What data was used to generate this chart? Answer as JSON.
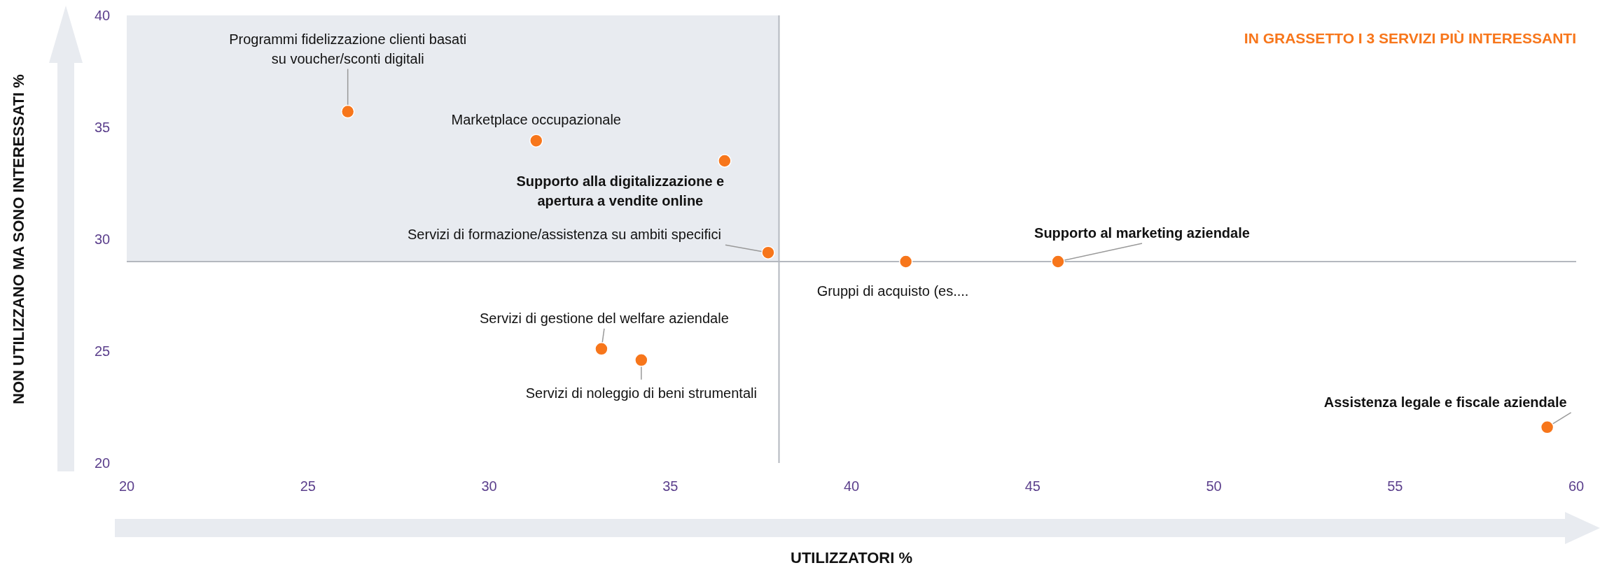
{
  "chart_data": {
    "type": "scatter",
    "xlabel": "UTILIZZATORI %",
    "ylabel": "NON UTILIZZANO MA SONO INTERESSATI %",
    "xlim": [
      20,
      60
    ],
    "xticks": [
      20,
      25,
      30,
      35,
      40,
      45,
      50,
      55,
      60
    ],
    "ylim": [
      20,
      40
    ],
    "yticks": [
      20,
      25,
      30,
      35,
      40
    ],
    "grid": false,
    "marker": "circle",
    "series": [
      {
        "color": "#f7761b",
        "x": [
          26.1,
          31.3,
          36.5,
          37.7,
          41.5,
          45.7,
          33.1,
          34.2,
          59.2
        ],
        "values": [
          35.7,
          34.4,
          33.5,
          29.4,
          29.0,
          29.0,
          25.1,
          24.6,
          21.6
        ]
      }
    ],
    "ref_lines": [
      {
        "axis": "x",
        "value": 38,
        "color": "#b4b8bf"
      },
      {
        "axis": "y",
        "value": 29,
        "color": "#b4b8bf"
      }
    ],
    "annotations": [
      {
        "text": "Programmi fidelizzazione clienti basati\nsu voucher/sconti digitali",
        "x": 26.1,
        "y": 35.7
      },
      {
        "text": "Marketplace occupazionale",
        "x": 31.3,
        "y": 34.4
      },
      {
        "text": "Supporto alla digitalizzazione e\napertura a vendite online",
        "x": 36.5,
        "y": 33.5
      },
      {
        "text": "Servizi di formazione/assistenza su ambiti specifici",
        "x": 37.7,
        "y": 29.4
      },
      {
        "text": "Gruppi di acquisto  (es....",
        "x": 41.5,
        "y": 29.0
      },
      {
        "text": "Supporto al marketing aziendale",
        "x": 45.7,
        "y": 29.0
      },
      {
        "text": "Servizi di gestione del welfare aziendale",
        "x": 33.1,
        "y": 25.1
      },
      {
        "text": "Servizi di noleggio di beni strumentali",
        "x": 34.2,
        "y": 24.6
      },
      {
        "text": "Assistenza legale e fiscale aziendale",
        "x": 59.2,
        "y": 21.6
      },
      "IN GRASSETTO I 3 SERVIZI PIÙ INTERESSANTI"
    ]
  }
}
